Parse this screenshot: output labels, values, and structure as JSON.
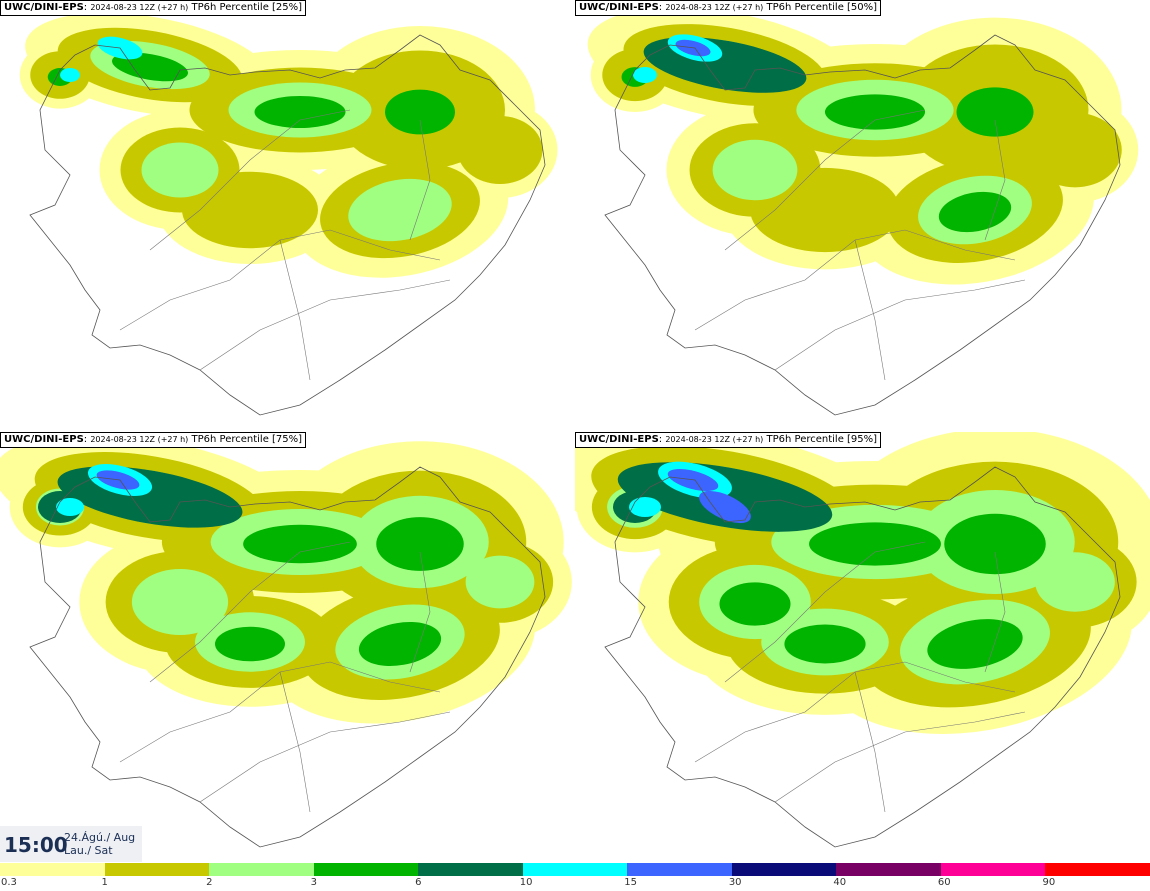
{
  "panels": [
    {
      "model": "UWC/DINI-EPS",
      "run": "2024-08-23 12Z (+27 h)",
      "product": "TP6h Percentile [25%]"
    },
    {
      "model": "UWC/DINI-EPS",
      "run": "2024-08-23 12Z (+27 h)",
      "product": "TP6h Percentile [50%]"
    },
    {
      "model": "UWC/DINI-EPS",
      "run": "2024-08-23 12Z (+27 h)",
      "product": "TP6h Percentile [75%]"
    },
    {
      "model": "UWC/DINI-EPS",
      "run": "2024-08-23 12Z (+27 h)",
      "product": "TP6h Percentile [95%]"
    }
  ],
  "valid_time": {
    "hour": "15:00",
    "date_line1": "24.Ágú./ Aug",
    "date_line2": "Lau./ Sat"
  },
  "legend": {
    "colors": [
      "#ffff99",
      "#c8c800",
      "#a0ff80",
      "#00b400",
      "#006e46",
      "#00ffff",
      "#3c64ff",
      "#0a0a78",
      "#780064",
      "#ff0096",
      "#ff0000"
    ],
    "labels": [
      "0.3",
      "1",
      "2",
      "3",
      "6",
      "10",
      "15",
      "30",
      "40",
      "60",
      "90"
    ]
  }
}
